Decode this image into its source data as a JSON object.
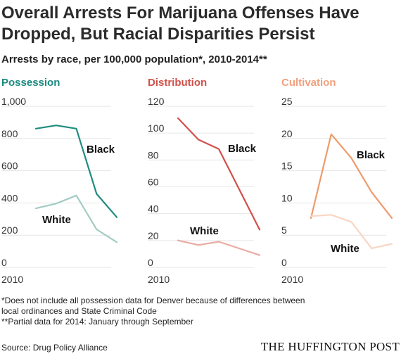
{
  "header": {
    "title_line1": "Overall Arrests For Marijuana Offenses Have",
    "title_line2": "Dropped, But Racial Disparities Persist",
    "subtitle": "Arrests by race, per 100,000 population*, 2010-2014**"
  },
  "footer": {
    "note_line1": "*Does not include all possession data for Denver because of differences between",
    "note_line2": "local ordinances and State Criminal Code",
    "note_line3": "**Partial data for 2014: January through September",
    "source": "Source: Drug Policy Alliance",
    "brand": "THE HUFFINGTON POST"
  },
  "chart_data": [
    {
      "type": "line",
      "title": "Possession",
      "title_color": "#1a8a7e",
      "x": [
        2010,
        2011,
        2012,
        2013,
        2014
      ],
      "x_tick_label": "2010",
      "ylim": [
        0,
        1000
      ],
      "y_ticks": [
        "0",
        "200",
        "400",
        "600",
        "800",
        "1,000"
      ],
      "series": [
        {
          "name": "Black",
          "color": "#1f8c7f",
          "values": [
            835,
            855,
            835,
            430,
            285
          ]
        },
        {
          "name": "White",
          "color": "#a3ccc4",
          "values": [
            340,
            370,
            420,
            210,
            130
          ]
        }
      ]
    },
    {
      "type": "line",
      "title": "Distribution",
      "title_color": "#d0504a",
      "x": [
        2010,
        2011,
        2012,
        2013,
        2014
      ],
      "x_tick_label": "2010",
      "ylim": [
        0,
        120
      ],
      "y_ticks": [
        "0",
        "20",
        "40",
        "60",
        "80",
        "100",
        "120"
      ],
      "series": [
        {
          "name": "Black",
          "color": "#d0504a",
          "values": [
            108,
            92,
            85,
            55,
            25
          ]
        },
        {
          "name": "White",
          "color": "#eaaba3",
          "values": [
            17,
            13.5,
            16,
            11,
            6
          ]
        }
      ]
    },
    {
      "type": "line",
      "title": "Cultivation",
      "title_color": "#f2a07e",
      "x": [
        2010,
        2011,
        2012,
        2013,
        2014
      ],
      "x_tick_label": "2010",
      "ylim": [
        0,
        25
      ],
      "y_ticks": [
        "0",
        "5",
        "10",
        "15",
        "20",
        "25"
      ],
      "series": [
        {
          "name": "Black",
          "color": "#ee9a6c",
          "values": [
            7,
            20,
            16.3,
            11,
            7
          ]
        },
        {
          "name": "White",
          "color": "#f9d5c3",
          "values": [
            7.3,
            7.5,
            6.4,
            2.3,
            3
          ]
        }
      ]
    }
  ]
}
